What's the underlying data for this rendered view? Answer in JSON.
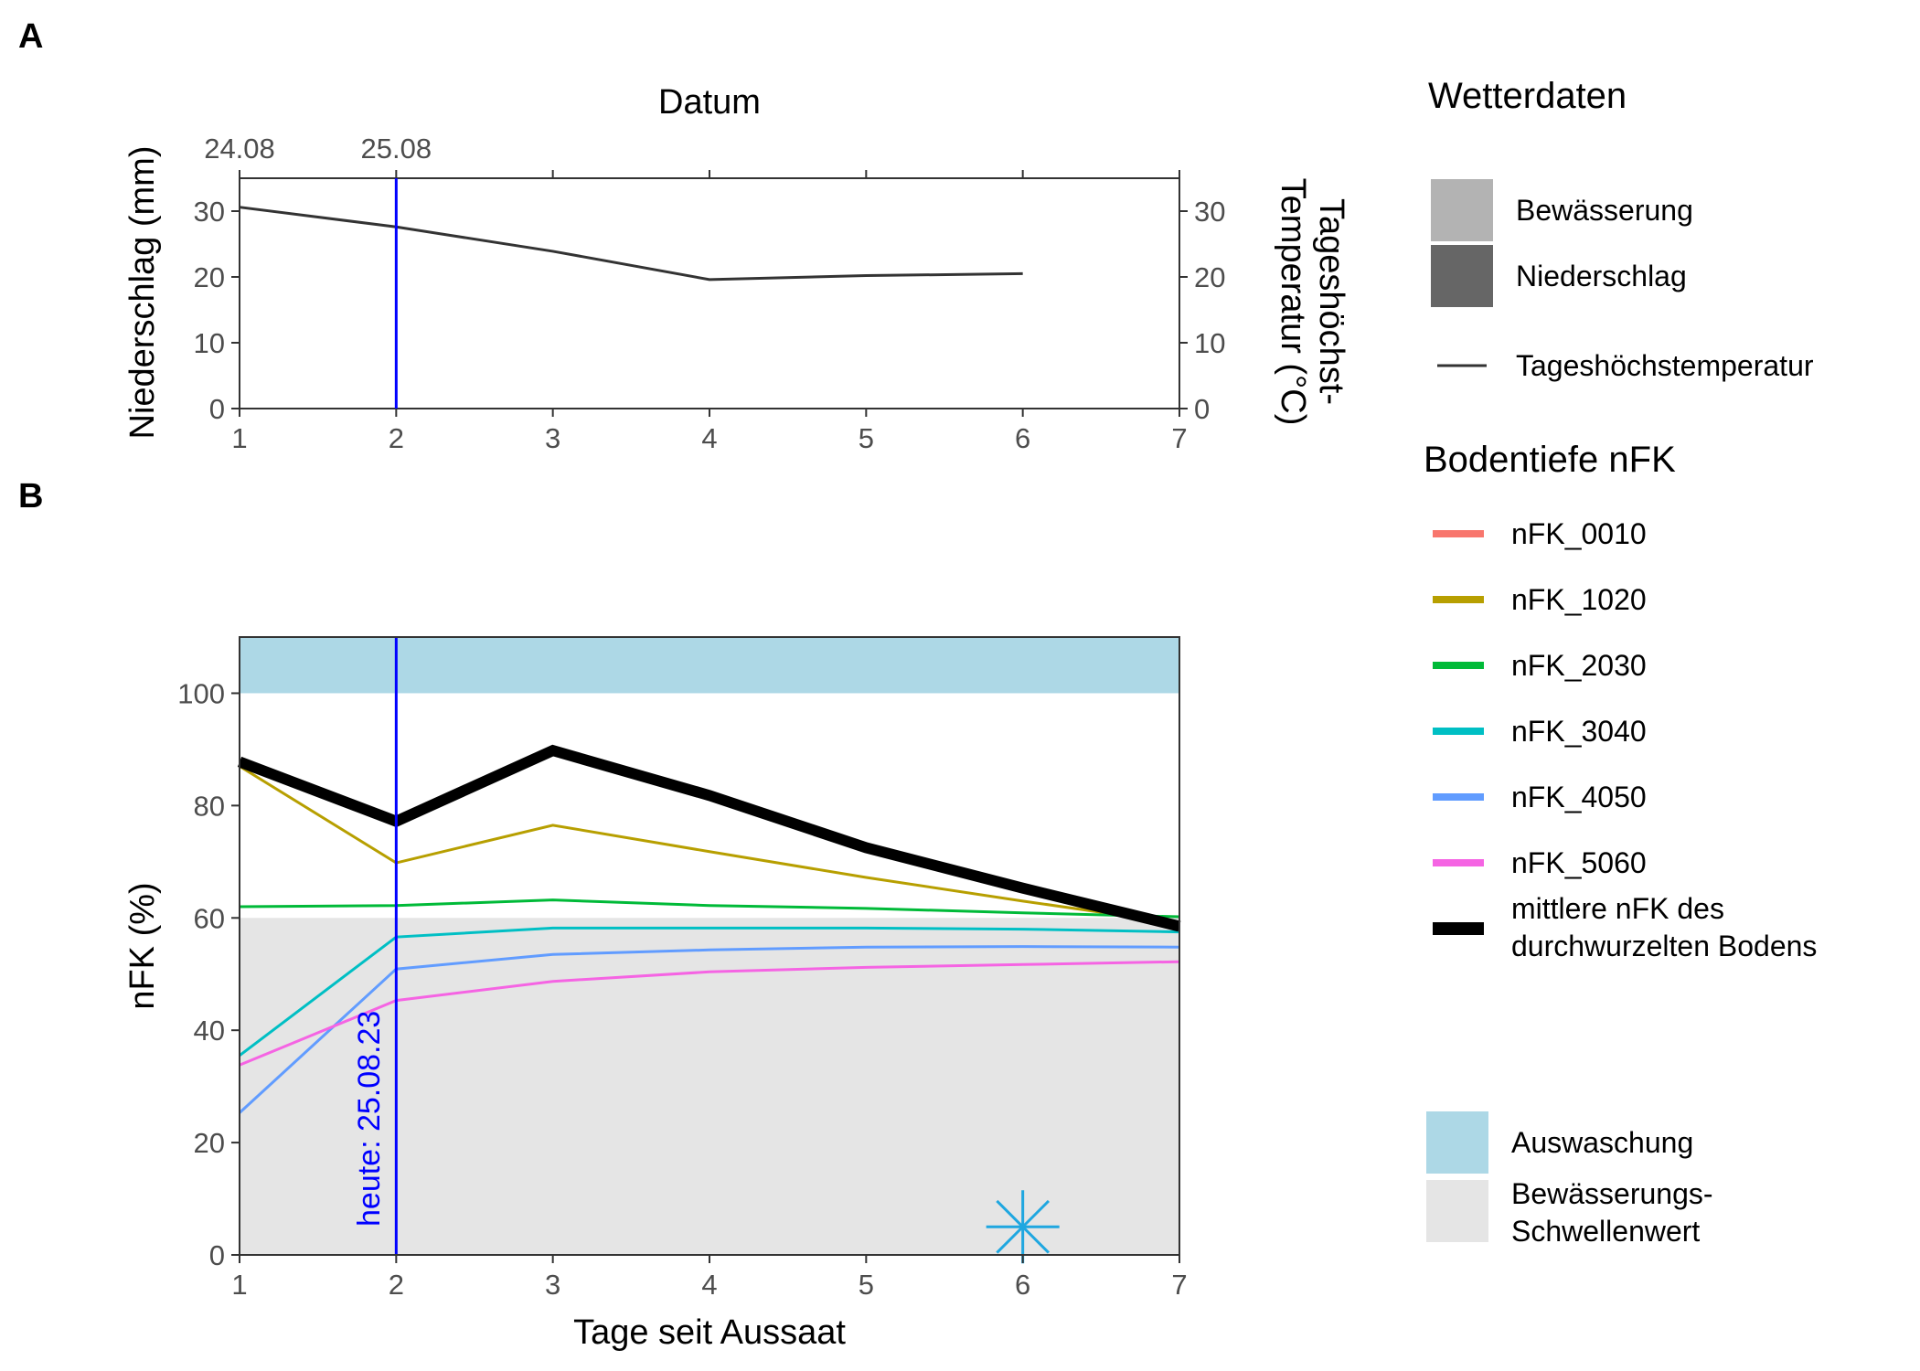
{
  "panels": {
    "a": {
      "tag": "A"
    },
    "b": {
      "tag": "B"
    }
  },
  "chart_data": [
    {
      "type": "line",
      "panel": "A",
      "x_axis_bottom": {
        "ticks": [
          1,
          2,
          3,
          4,
          5,
          6,
          7
        ],
        "range": [
          1,
          7
        ]
      },
      "x_axis_top": {
        "title": "Datum",
        "ticks": [
          {
            "x": 1,
            "label": "24.08"
          },
          {
            "x": 2,
            "label": "25.08"
          },
          {
            "x": 3,
            "label": ""
          },
          {
            "x": 4,
            "label": ""
          },
          {
            "x": 5,
            "label": ""
          },
          {
            "x": 6,
            "label": ""
          },
          {
            "x": 7,
            "label": ""
          }
        ]
      },
      "y_axis_left": {
        "title": "Niederschlag (mm)",
        "ticks": [
          0,
          10,
          20,
          30
        ],
        "range": [
          0,
          35
        ]
      },
      "y_axis_right": {
        "title_line1": "Tageshöchst-",
        "title_line2": "Temperatur (°C)",
        "ticks": [
          0,
          10,
          20,
          30
        ],
        "range": [
          0,
          35
        ]
      },
      "series": [
        {
          "name": "Tageshöchstemperatur",
          "color": "#333333",
          "x": [
            1,
            2,
            3,
            4,
            5,
            6
          ],
          "y": [
            30.6,
            27.6,
            23.9,
            19.6,
            20.2,
            20.5
          ]
        }
      ],
      "vline": {
        "x": 2,
        "color": "#0000ff"
      },
      "legend": {
        "title": "Wetterdaten",
        "items": [
          {
            "label": "Bewässerung",
            "color": "#b3b3b3",
            "kind": "fill"
          },
          {
            "label": "Niederschlag",
            "color": "#666666",
            "kind": "fill"
          },
          {
            "label": "Tageshöchstemperatur",
            "color": "#333333",
            "kind": "line"
          }
        ]
      },
      "grid": false
    },
    {
      "type": "line",
      "panel": "B",
      "x_axis": {
        "title": "Tage seit Aussaat",
        "ticks": [
          1,
          2,
          3,
          4,
          5,
          6,
          7
        ],
        "range": [
          1,
          7
        ]
      },
      "y_axis": {
        "title": "nFK (%)",
        "ticks": [
          0,
          20,
          40,
          60,
          80,
          100
        ],
        "range": [
          0,
          110
        ]
      },
      "bands": [
        {
          "name": "Auswaschung",
          "from": 100,
          "to": 110,
          "color": "#add8e6"
        },
        {
          "name": "Bewässerungs-Schwellenwert",
          "from": 0,
          "to": 60,
          "color": "#e5e5e5"
        }
      ],
      "series": [
        {
          "name": "nFK_0010",
          "color": "#f8766d",
          "x": [],
          "y": []
        },
        {
          "name": "nFK_1020",
          "color": "#b79f00",
          "x": [
            1,
            2,
            3,
            4,
            5,
            6,
            7
          ],
          "y": [
            87,
            69.8,
            76.5,
            71.8,
            67.2,
            63,
            59
          ]
        },
        {
          "name": "nFK_2030",
          "color": "#00ba38",
          "x": [
            1,
            2,
            3,
            4,
            5,
            6,
            7
          ],
          "y": [
            62,
            62.2,
            63.2,
            62.2,
            61.7,
            60.9,
            60.2
          ]
        },
        {
          "name": "nFK_3040",
          "color": "#00bfc4",
          "x": [
            1,
            2,
            3,
            4,
            5,
            6,
            7
          ],
          "y": [
            35.5,
            56.6,
            58.2,
            58.2,
            58.2,
            58,
            57.5
          ]
        },
        {
          "name": "nFK_4050",
          "color": "#619cff",
          "x": [
            1,
            2,
            3,
            4,
            5,
            6,
            7
          ],
          "y": [
            25.3,
            50.9,
            53.5,
            54.3,
            54.8,
            54.9,
            54.8
          ]
        },
        {
          "name": "nFK_5060",
          "color": "#f564e3",
          "x": [
            1,
            2,
            3,
            4,
            5,
            6,
            7
          ],
          "y": [
            33.8,
            45.3,
            48.7,
            50.4,
            51.2,
            51.7,
            52.2
          ]
        },
        {
          "name": "mittlere nFK des durchwurzelten Bodens",
          "color": "#000000",
          "bold": true,
          "x": [
            1,
            2,
            3,
            4,
            5,
            6,
            7
          ],
          "y": [
            87.8,
            77.2,
            89.8,
            81.8,
            72.5,
            65.3,
            58.5
          ]
        }
      ],
      "vline": {
        "x": 2,
        "color": "#0000ff",
        "label": "heute: 25.08.23"
      },
      "marker": {
        "x": 6,
        "y": 5,
        "shape": "asterisk",
        "color": "#1fa7e0"
      },
      "legend": {
        "title": "Bodentiefe nFK",
        "items": [
          {
            "label": "nFK_0010",
            "color": "#f8766d"
          },
          {
            "label": "nFK_1020",
            "color": "#b79f00"
          },
          {
            "label": "nFK_2030",
            "color": "#00ba38"
          },
          {
            "label": "nFK_3040",
            "color": "#00bfc4"
          },
          {
            "label": "nFK_4050",
            "color": "#619cff"
          },
          {
            "label": "nFK_5060",
            "color": "#f564e3"
          },
          {
            "label_line1": "mittlere nFK des",
            "label_line2": "durchwurzelten Bodens",
            "color": "#000000",
            "bold": true
          }
        ],
        "band_items": [
          {
            "label": "Auswaschung",
            "color": "#add8e6"
          },
          {
            "label_line1": "Bewässerungs-",
            "label_line2": "Schwellenwert",
            "color": "#e5e5e5"
          }
        ]
      },
      "grid": false
    }
  ]
}
